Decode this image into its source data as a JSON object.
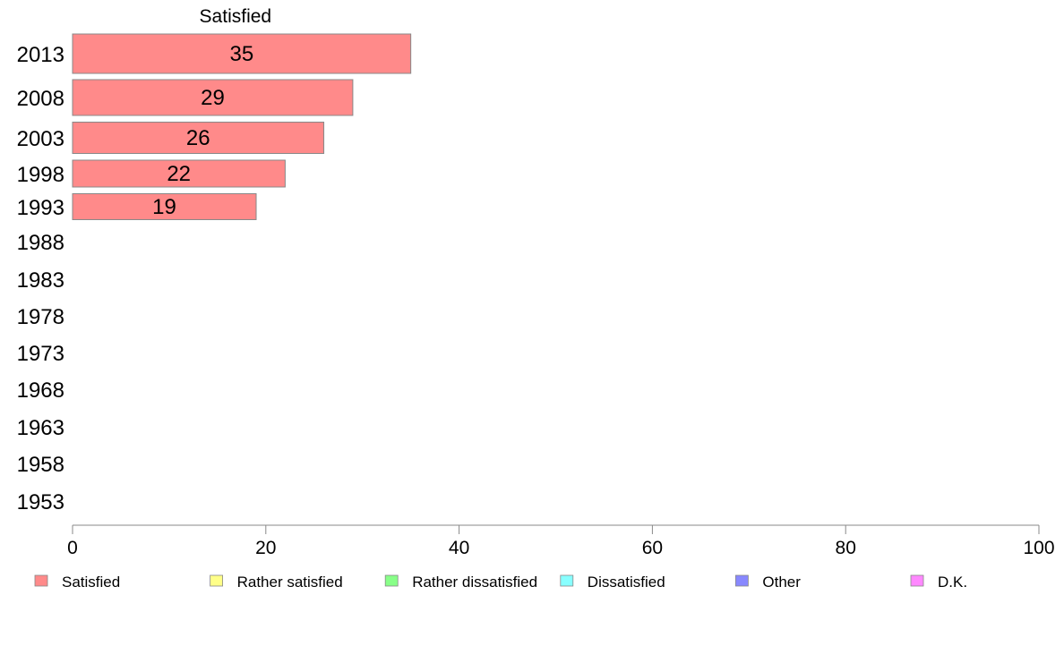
{
  "chart_data": {
    "type": "bar",
    "orientation": "horizontal",
    "stacked": true,
    "title": "",
    "xlabel": "",
    "ylabel": "",
    "xlim": [
      0,
      100
    ],
    "x_ticks": [
      0,
      20,
      40,
      60,
      80,
      100
    ],
    "categories": [
      "2013",
      "2008",
      "2003",
      "1998",
      "1993",
      "1988",
      "1983",
      "1978",
      "1973",
      "1968",
      "1963",
      "1958",
      "1953"
    ],
    "series": [
      {
        "name": "Satisfied",
        "color": "#ff8a8a",
        "values": [
          35,
          29,
          26,
          22,
          19,
          null,
          null,
          null,
          null,
          null,
          null,
          null,
          null
        ],
        "data_labels": [
          "35",
          "29",
          "26",
          "22",
          "19",
          "",
          "",
          "",
          "",
          "",
          "",
          "",
          ""
        ],
        "column_header": "Satisfied"
      },
      {
        "name": "Rather satisfied",
        "color": "#ffff88",
        "values": [
          null,
          null,
          null,
          null,
          null,
          null,
          null,
          null,
          null,
          null,
          null,
          null,
          null
        ]
      },
      {
        "name": "Rather dissatisfied",
        "color": "#88ff88",
        "values": [
          null,
          null,
          null,
          null,
          null,
          null,
          null,
          null,
          null,
          null,
          null,
          null,
          null
        ]
      },
      {
        "name": "Dissatisfied",
        "color": "#88ffff",
        "values": [
          null,
          null,
          null,
          null,
          null,
          null,
          null,
          null,
          null,
          null,
          null,
          null,
          null
        ]
      },
      {
        "name": "Other",
        "color": "#8888ff",
        "values": [
          null,
          null,
          null,
          null,
          null,
          null,
          null,
          null,
          null,
          null,
          null,
          null,
          null
        ]
      },
      {
        "name": "D.K.",
        "color": "#ff88ff",
        "values": [
          null,
          null,
          null,
          null,
          null,
          null,
          null,
          null,
          null,
          null,
          null,
          null,
          null
        ]
      }
    ],
    "legend": {
      "position": "bottom",
      "items": [
        "Satisfied",
        "Rather satisfied",
        "Rather dissatisfied",
        "Dissatisfied",
        "Other",
        "D.K."
      ]
    },
    "grid": false,
    "bar_border_color": "#888888",
    "axis_color": "#888888"
  }
}
